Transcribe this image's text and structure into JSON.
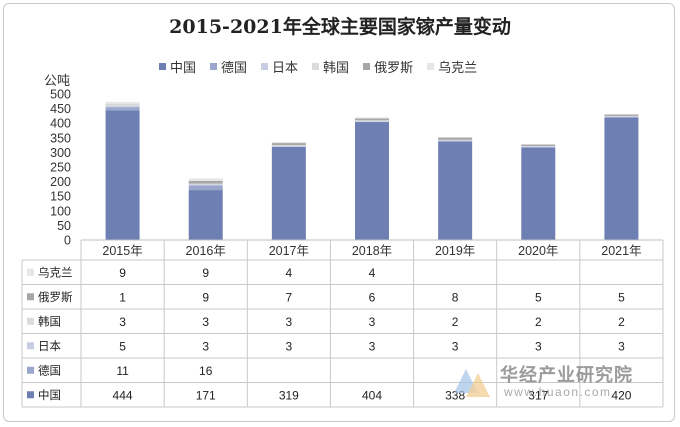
{
  "chart_data": {
    "type": "bar",
    "stacked": true,
    "title": "2015-2021年全球主要国家镓产量变动",
    "ylabel": "公吨",
    "ylim": [
      0,
      500
    ],
    "yticks": [
      0,
      50,
      100,
      150,
      200,
      250,
      300,
      350,
      400,
      450,
      500
    ],
    "grid": false,
    "legend_position": "top",
    "categories": [
      "2015年",
      "2016年",
      "2017年",
      "2018年",
      "2019年",
      "2020年",
      "2021年"
    ],
    "series": [
      {
        "name": "中国",
        "color": "#6e7fb3",
        "values": [
          444,
          171,
          319,
          404,
          338,
          317,
          420
        ]
      },
      {
        "name": "德国",
        "color": "#9aa6cc",
        "values": [
          11,
          16,
          null,
          null,
          null,
          null,
          null
        ]
      },
      {
        "name": "日本",
        "color": "#c7cde3",
        "values": [
          5,
          3,
          3,
          3,
          3,
          3,
          3
        ]
      },
      {
        "name": "韩国",
        "color": "#dcdcdc",
        "values": [
          3,
          3,
          3,
          3,
          2,
          2,
          2
        ]
      },
      {
        "name": "俄罗斯",
        "color": "#a7a7a7",
        "values": [
          1,
          9,
          7,
          6,
          8,
          5,
          5
        ]
      },
      {
        "name": "乌克兰",
        "color": "#e6e6e6",
        "values": [
          9,
          9,
          4,
          4,
          null,
          null,
          null
        ]
      }
    ],
    "data_table": true
  },
  "watermark": {
    "text": "华经产业研究院",
    "url": "www.huaon.com"
  }
}
